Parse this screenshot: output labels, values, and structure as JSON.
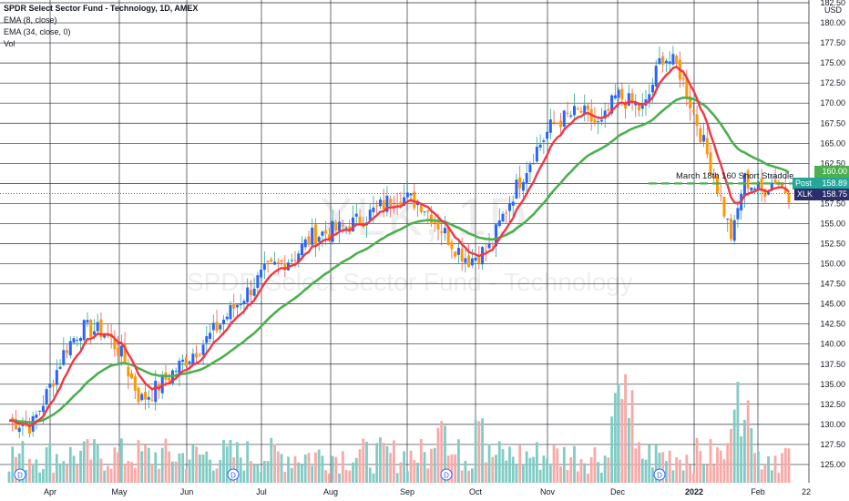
{
  "legend": {
    "title": "SPDR Select Sector Fund - Technology, 1D, AMEX",
    "ema_fast": "EMA (8, close)",
    "ema_slow": "EMA (34, close, 0)",
    "volume": "Vol"
  },
  "watermark": {
    "symbol": "XLK, 1D",
    "name": "SPDR Select Sector Fund - Technology"
  },
  "currency": "USD",
  "annotation": "March 18th 160 Short Straddle",
  "price_tags": {
    "ema_slow": {
      "value": "160.00",
      "color": "#4caf50"
    },
    "post": {
      "label": "Post",
      "value": "158.89",
      "color": "#26a69a"
    },
    "last": {
      "label": "XLK",
      "value": "158.75",
      "color": "#2a2e6a"
    }
  },
  "x_axis": [
    "Apr",
    "May",
    "Jun",
    "Jul",
    "Aug",
    "Sep",
    "Oct",
    "Nov",
    "Dec",
    "2022",
    "Feb",
    "22"
  ],
  "dividend_marker": "D",
  "colors": {
    "up": "#26a69a",
    "down": "#ef5350",
    "up_body": "#2962ff",
    "down_body": "#ff9800",
    "ema_fast": "#f23645",
    "ema_slow": "#4caf50",
    "vol_up": "#80cbc4",
    "vol_down": "#f7a9a7"
  },
  "chart_data": {
    "type": "candlestick",
    "symbol": "XLK",
    "interval": "1D",
    "exchange": "AMEX",
    "ylim": [
      122.5,
      182.5
    ],
    "y_ticks": [
      125.0,
      127.5,
      130.0,
      132.5,
      135.0,
      137.5,
      140.0,
      142.5,
      145.0,
      147.5,
      150.0,
      152.5,
      155.0,
      157.5,
      160.0,
      162.5,
      165.0,
      167.5,
      170.0,
      172.5,
      175.0,
      177.5,
      180.0,
      182.5
    ],
    "close_path": [
      {
        "date": "2021-03-15",
        "close": 130.5
      },
      {
        "date": "2021-03-25",
        "close": 129.8
      },
      {
        "date": "2021-04-01",
        "close": 134.0
      },
      {
        "date": "2021-04-09",
        "close": 139.5
      },
      {
        "date": "2021-04-16",
        "close": 142.0
      },
      {
        "date": "2021-04-26",
        "close": 141.5
      },
      {
        "date": "2021-05-03",
        "close": 139.0
      },
      {
        "date": "2021-05-12",
        "close": 133.0
      },
      {
        "date": "2021-05-19",
        "close": 134.5
      },
      {
        "date": "2021-05-28",
        "close": 137.0
      },
      {
        "date": "2021-06-10",
        "close": 140.5
      },
      {
        "date": "2021-06-22",
        "close": 144.5
      },
      {
        "date": "2021-07-06",
        "close": 149.0
      },
      {
        "date": "2021-07-19",
        "close": 151.0
      },
      {
        "date": "2021-07-27",
        "close": 153.5
      },
      {
        "date": "2021-08-10",
        "close": 154.5
      },
      {
        "date": "2021-08-20",
        "close": 156.0
      },
      {
        "date": "2021-09-02",
        "close": 158.5
      },
      {
        "date": "2021-09-13",
        "close": 157.5
      },
      {
        "date": "2021-09-20",
        "close": 155.0
      },
      {
        "date": "2021-09-28",
        "close": 152.0
      },
      {
        "date": "2021-10-04",
        "close": 150.5
      },
      {
        "date": "2021-10-13",
        "close": 152.0
      },
      {
        "date": "2021-10-22",
        "close": 158.0
      },
      {
        "date": "2021-11-01",
        "close": 163.5
      },
      {
        "date": "2021-11-10",
        "close": 167.5
      },
      {
        "date": "2021-11-22",
        "close": 169.0
      },
      {
        "date": "2021-12-01",
        "close": 167.0
      },
      {
        "date": "2021-12-08",
        "close": 171.0
      },
      {
        "date": "2021-12-20",
        "close": 169.0
      },
      {
        "date": "2021-12-28",
        "close": 176.0
      },
      {
        "date": "2022-01-04",
        "close": 174.5
      },
      {
        "date": "2022-01-12",
        "close": 168.0
      },
      {
        "date": "2022-01-21",
        "close": 160.0
      },
      {
        "date": "2022-01-28",
        "close": 153.0
      },
      {
        "date": "2022-02-02",
        "close": 160.5
      },
      {
        "date": "2022-02-10",
        "close": 159.0
      },
      {
        "date": "2022-02-16",
        "close": 160.5
      },
      {
        "date": "2022-02-22",
        "close": 158.75
      }
    ],
    "volume": "relative bars, not numerically labeled"
  }
}
